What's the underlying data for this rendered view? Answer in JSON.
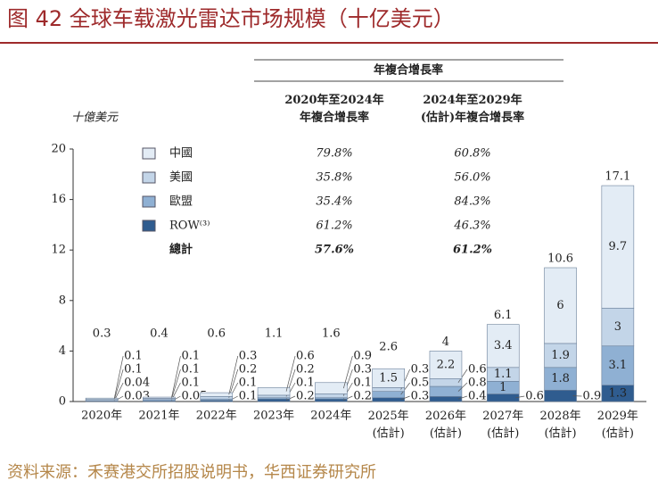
{
  "chart_data": {
    "type": "stacked_bar",
    "title": "图 42  全球车载激光雷达市场规模（十亿美元）",
    "y_label": "十億美元",
    "source": "资料来源：禾赛港交所招股说明书，华西证券研究所",
    "categories": [
      "2020年",
      "2021年",
      "2022年",
      "2023年",
      "2024年",
      "2025年\n(估計)",
      "2026年\n(估計)",
      "2027年\n(估計)",
      "2028年\n(估計)",
      "2029年\n(估計)"
    ],
    "series": [
      {
        "name": "ROW⁽³⁾",
        "color": "#2f5c8f",
        "values": [
          0.03,
          0.05,
          0.1,
          0.2,
          0.2,
          0.3,
          0.4,
          0.6,
          0.9,
          1.3
        ]
      },
      {
        "name": "歐盟",
        "color": "#8fb0d3",
        "values": [
          0.04,
          0.1,
          0.1,
          0.1,
          0.1,
          0.5,
          0.8,
          1.0,
          1.8,
          3.1
        ]
      },
      {
        "name": "美國",
        "color": "#c3d5e8",
        "values": [
          0.1,
          0.1,
          0.2,
          0.2,
          0.3,
          0.3,
          0.6,
          1.1,
          1.9,
          3.0
        ]
      },
      {
        "name": "中國",
        "color": "#e3ecf5",
        "values": [
          0.1,
          0.1,
          0.3,
          0.6,
          0.9,
          1.5,
          2.2,
          3.4,
          6.0,
          9.7
        ]
      }
    ],
    "totals": [
      0.3,
      0.4,
      0.6,
      1.1,
      1.6,
      2.6,
      4.0,
      6.1,
      10.6,
      17.1
    ],
    "ylim": [
      0,
      20
    ],
    "yticks": [
      0,
      4,
      8,
      12,
      16,
      20
    ],
    "cagr": {
      "title": "年複合增長率",
      "columns": [
        "2020年至2024年\n年複合增長率",
        "2024年至2029年\n(估計)年複合增長率"
      ],
      "rows": [
        [
          "79.8%",
          "60.8%"
        ],
        [
          "35.8%",
          "56.0%"
        ],
        [
          "35.4%",
          "84.3%"
        ],
        [
          "61.2%",
          "46.3%"
        ]
      ],
      "total_name": "總計",
      "total": [
        "57.6%",
        "61.2%"
      ]
    }
  }
}
